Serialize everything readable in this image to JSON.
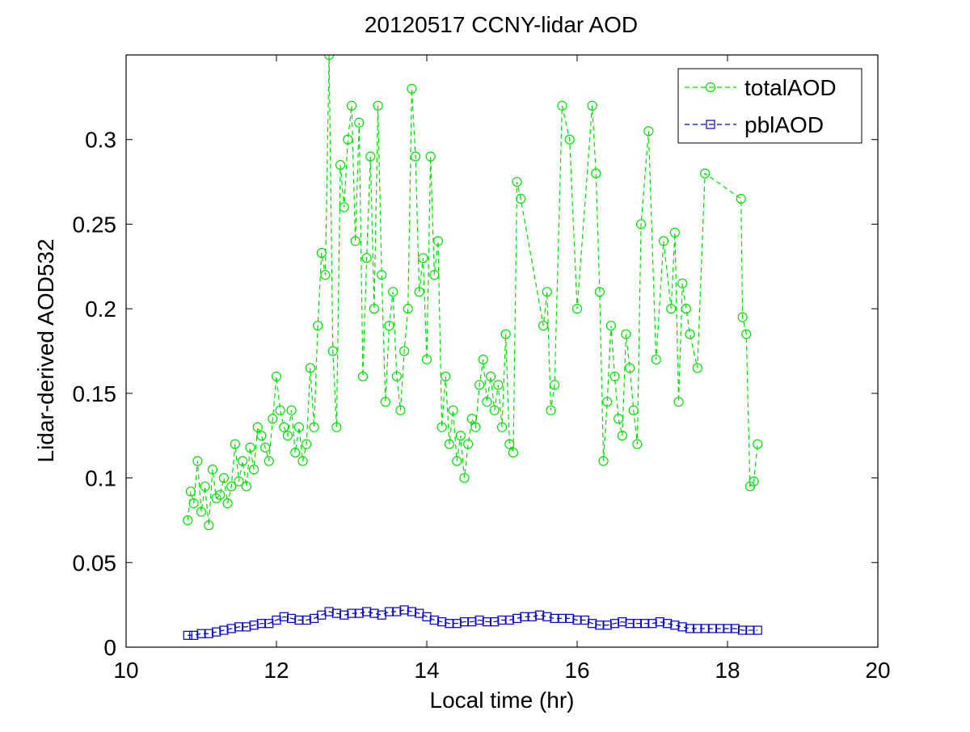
{
  "chart_data": {
    "type": "line",
    "title": "20120517 CCNY-lidar AOD",
    "xlabel": "Local time (hr)",
    "ylabel": "Lidar-derived AOD532",
    "xlim": [
      10,
      20
    ],
    "ylim": [
      0,
      0.35
    ],
    "xticks": [
      10,
      12,
      14,
      16,
      18,
      20
    ],
    "yticks": [
      0,
      0.05,
      0.1,
      0.15,
      0.2,
      0.25,
      0.3
    ],
    "xtick_labels": [
      "10",
      "12",
      "14",
      "16",
      "18",
      "20"
    ],
    "ytick_labels": [
      "0",
      "0.05",
      "0.1",
      "0.15",
      "0.2",
      "0.25",
      "0.3"
    ],
    "grid": false,
    "legend_position": "top-right",
    "series": [
      {
        "name": "totalAOD",
        "color": "#00e000",
        "marker": "circle",
        "line_style": "dashed",
        "x": [
          10.82,
          10.86,
          10.9,
          10.95,
          11.0,
          11.05,
          11.1,
          11.15,
          11.2,
          11.25,
          11.3,
          11.35,
          11.4,
          11.45,
          11.5,
          11.55,
          11.6,
          11.65,
          11.7,
          11.75,
          11.8,
          11.85,
          11.9,
          11.95,
          12.0,
          12.05,
          12.1,
          12.15,
          12.2,
          12.25,
          12.3,
          12.35,
          12.4,
          12.45,
          12.5,
          12.55,
          12.6,
          12.65,
          12.7,
          12.75,
          12.8,
          12.85,
          12.9,
          12.95,
          13.0,
          13.05,
          13.1,
          13.15,
          13.2,
          13.25,
          13.3,
          13.35,
          13.4,
          13.45,
          13.5,
          13.55,
          13.6,
          13.65,
          13.7,
          13.75,
          13.8,
          13.85,
          13.9,
          13.95,
          14.0,
          14.05,
          14.1,
          14.15,
          14.2,
          14.25,
          14.3,
          14.35,
          14.4,
          14.45,
          14.5,
          14.55,
          14.6,
          14.65,
          14.7,
          14.75,
          14.8,
          14.85,
          14.9,
          14.95,
          15.0,
          15.05,
          15.1,
          15.15,
          15.2,
          15.25,
          15.55,
          15.6,
          15.65,
          15.7,
          15.8,
          15.9,
          16.0,
          16.2,
          16.25,
          16.3,
          16.35,
          16.4,
          16.45,
          16.5,
          16.55,
          16.6,
          16.65,
          16.7,
          16.75,
          16.8,
          16.85,
          16.95,
          17.05,
          17.15,
          17.25,
          17.3,
          17.35,
          17.4,
          17.45,
          17.5,
          17.6,
          17.7,
          18.18,
          18.2,
          18.25,
          18.3,
          18.35,
          18.4
        ],
        "y": [
          0.075,
          0.092,
          0.085,
          0.11,
          0.08,
          0.095,
          0.072,
          0.105,
          0.088,
          0.09,
          0.1,
          0.085,
          0.095,
          0.12,
          0.098,
          0.11,
          0.095,
          0.118,
          0.105,
          0.13,
          0.125,
          0.118,
          0.11,
          0.135,
          0.16,
          0.14,
          0.13,
          0.125,
          0.14,
          0.115,
          0.13,
          0.11,
          0.12,
          0.165,
          0.13,
          0.19,
          0.233,
          0.22,
          0.35,
          0.175,
          0.13,
          0.285,
          0.26,
          0.3,
          0.32,
          0.24,
          0.31,
          0.16,
          0.23,
          0.29,
          0.2,
          0.32,
          0.22,
          0.145,
          0.19,
          0.21,
          0.16,
          0.14,
          0.175,
          0.2,
          0.33,
          0.29,
          0.21,
          0.23,
          0.17,
          0.29,
          0.22,
          0.24,
          0.13,
          0.16,
          0.12,
          0.14,
          0.11,
          0.125,
          0.1,
          0.12,
          0.135,
          0.13,
          0.155,
          0.17,
          0.145,
          0.16,
          0.14,
          0.155,
          0.13,
          0.185,
          0.12,
          0.115,
          0.275,
          0.265,
          0.19,
          0.21,
          0.14,
          0.155,
          0.32,
          0.3,
          0.2,
          0.32,
          0.28,
          0.21,
          0.11,
          0.145,
          0.19,
          0.16,
          0.135,
          0.125,
          0.185,
          0.165,
          0.14,
          0.12,
          0.25,
          0.305,
          0.17,
          0.24,
          0.2,
          0.245,
          0.145,
          0.215,
          0.2,
          0.185,
          0.165,
          0.28,
          0.265,
          0.195,
          0.185,
          0.095,
          0.098,
          0.12
        ]
      },
      {
        "name": "pblAOD",
        "color": "#0000c8",
        "marker": "square",
        "line_style": "dashed",
        "x": [
          10.82,
          10.9,
          11.0,
          11.1,
          11.2,
          11.3,
          11.4,
          11.5,
          11.6,
          11.7,
          11.8,
          11.9,
          12.0,
          12.1,
          12.2,
          12.3,
          12.4,
          12.5,
          12.6,
          12.7,
          12.8,
          12.9,
          13.0,
          13.1,
          13.2,
          13.3,
          13.4,
          13.5,
          13.6,
          13.7,
          13.8,
          13.9,
          14.0,
          14.1,
          14.2,
          14.3,
          14.4,
          14.5,
          14.6,
          14.7,
          14.8,
          14.9,
          15.0,
          15.1,
          15.2,
          15.3,
          15.4,
          15.5,
          15.6,
          15.7,
          15.8,
          15.9,
          16.0,
          16.1,
          16.2,
          16.3,
          16.4,
          16.5,
          16.6,
          16.7,
          16.8,
          16.9,
          17.0,
          17.1,
          17.2,
          17.3,
          17.4,
          17.5,
          17.6,
          17.7,
          17.8,
          17.9,
          18.0,
          18.1,
          18.2,
          18.3,
          18.4
        ],
        "y": [
          0.007,
          0.007,
          0.008,
          0.008,
          0.009,
          0.01,
          0.011,
          0.012,
          0.012,
          0.013,
          0.014,
          0.014,
          0.016,
          0.018,
          0.017,
          0.016,
          0.016,
          0.017,
          0.019,
          0.021,
          0.02,
          0.019,
          0.02,
          0.02,
          0.021,
          0.02,
          0.019,
          0.021,
          0.021,
          0.022,
          0.021,
          0.02,
          0.018,
          0.016,
          0.015,
          0.014,
          0.014,
          0.015,
          0.015,
          0.016,
          0.015,
          0.015,
          0.016,
          0.016,
          0.017,
          0.018,
          0.018,
          0.019,
          0.018,
          0.017,
          0.017,
          0.017,
          0.016,
          0.016,
          0.014,
          0.013,
          0.013,
          0.014,
          0.015,
          0.014,
          0.014,
          0.014,
          0.014,
          0.015,
          0.014,
          0.013,
          0.012,
          0.011,
          0.011,
          0.011,
          0.011,
          0.011,
          0.011,
          0.011,
          0.01,
          0.01,
          0.01
        ]
      }
    ]
  }
}
